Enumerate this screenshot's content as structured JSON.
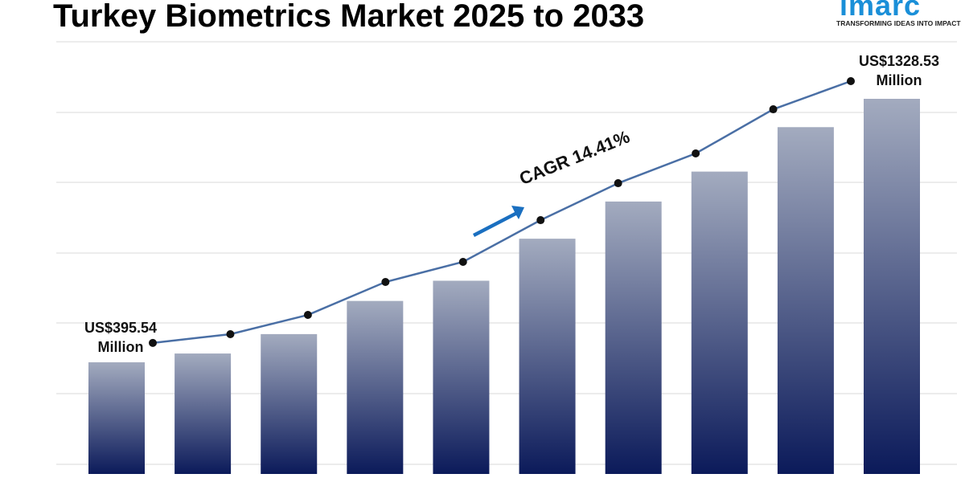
{
  "chart_data": {
    "type": "bar",
    "title": "Turkey Biometrics Market 2025 to 2033",
    "categories": [
      null,
      null,
      null,
      null,
      null,
      null,
      null,
      null,
      null,
      null
    ],
    "values": [
      395.54,
      426.6,
      495.3,
      612.7,
      684.3,
      833.1,
      964.8,
      1070.8,
      1228.2,
      1328.53
    ],
    "value_labels": [
      "US$395.54 Million",
      null,
      null,
      null,
      null,
      null,
      null,
      null,
      null,
      "US$1328.53 Million"
    ],
    "color": "#0b1a5a",
    "line_color": "#4a6fa5",
    "annotation": "CAGR 14.41%"
  },
  "logo": {
    "name": "imarc",
    "tagline": "TRANSFORMING IDEAS INTO IMPACT"
  }
}
